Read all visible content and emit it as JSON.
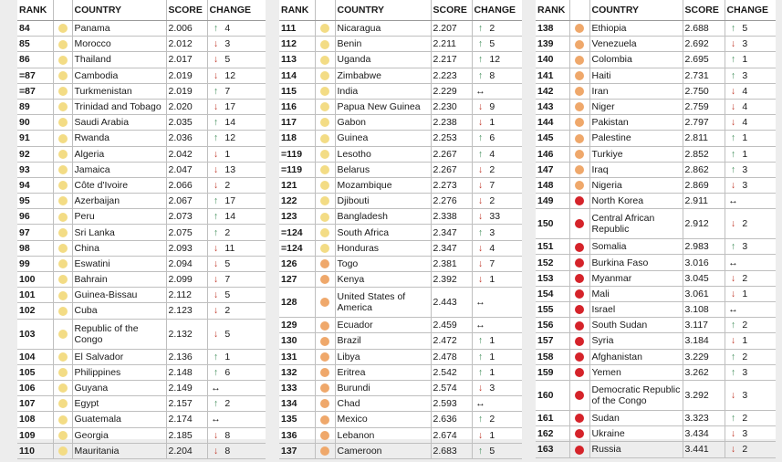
{
  "headers": {
    "rank": "RANK",
    "country": "COUNTRY",
    "score": "SCORE",
    "change": "CHANGE"
  },
  "columns": [
    {
      "rows": [
        {
          "rank": "84",
          "country": "Panama",
          "score": "2.006",
          "dir": "up",
          "change": "4",
          "level": "yellow"
        },
        {
          "rank": "85",
          "country": "Morocco",
          "score": "2.012",
          "dir": "down",
          "change": "3",
          "level": "yellow"
        },
        {
          "rank": "86",
          "country": "Thailand",
          "score": "2.017",
          "dir": "down",
          "change": "5",
          "level": "yellow"
        },
        {
          "rank": "=87",
          "country": "Cambodia",
          "score": "2.019",
          "dir": "down",
          "change": "12",
          "level": "yellow"
        },
        {
          "rank": "=87",
          "country": "Turkmenistan",
          "score": "2.019",
          "dir": "up",
          "change": "7",
          "level": "yellow"
        },
        {
          "rank": "89",
          "country": "Trinidad and Tobago",
          "score": "2.020",
          "dir": "down",
          "change": "17",
          "level": "yellow"
        },
        {
          "rank": "90",
          "country": "Saudi Arabia",
          "score": "2.035",
          "dir": "up",
          "change": "14",
          "level": "yellow"
        },
        {
          "rank": "91",
          "country": "Rwanda",
          "score": "2.036",
          "dir": "up",
          "change": "12",
          "level": "yellow"
        },
        {
          "rank": "92",
          "country": "Algeria",
          "score": "2.042",
          "dir": "down",
          "change": "1",
          "level": "yellow"
        },
        {
          "rank": "93",
          "country": "Jamaica",
          "score": "2.047",
          "dir": "down",
          "change": "13",
          "level": "yellow"
        },
        {
          "rank": "94",
          "country": "Côte d'Ivoire",
          "score": "2.066",
          "dir": "down",
          "change": "2",
          "level": "yellow"
        },
        {
          "rank": "95",
          "country": "Azerbaijan",
          "score": "2.067",
          "dir": "up",
          "change": "17",
          "level": "yellow"
        },
        {
          "rank": "96",
          "country": "Peru",
          "score": "2.073",
          "dir": "up",
          "change": "14",
          "level": "yellow"
        },
        {
          "rank": "97",
          "country": "Sri Lanka",
          "score": "2.075",
          "dir": "up",
          "change": "2",
          "level": "yellow"
        },
        {
          "rank": "98",
          "country": "China",
          "score": "2.093",
          "dir": "down",
          "change": "11",
          "level": "yellow"
        },
        {
          "rank": "99",
          "country": "Eswatini",
          "score": "2.094",
          "dir": "down",
          "change": "5",
          "level": "yellow"
        },
        {
          "rank": "100",
          "country": "Bahrain",
          "score": "2.099",
          "dir": "down",
          "change": "7",
          "level": "yellow"
        },
        {
          "rank": "101",
          "country": "Guinea-Bissau",
          "score": "2.112",
          "dir": "down",
          "change": "5",
          "level": "yellow"
        },
        {
          "rank": "102",
          "country": "Cuba",
          "score": "2.123",
          "dir": "down",
          "change": "2",
          "level": "yellow"
        },
        {
          "rank": "103",
          "country": "Republic of the Congo",
          "score": "2.132",
          "dir": "down",
          "change": "5",
          "level": "yellow",
          "tall": true
        },
        {
          "rank": "104",
          "country": "El Salvador",
          "score": "2.136",
          "dir": "up",
          "change": "1",
          "level": "yellow"
        },
        {
          "rank": "105",
          "country": "Philippines",
          "score": "2.148",
          "dir": "up",
          "change": "6",
          "level": "yellow"
        },
        {
          "rank": "106",
          "country": "Guyana",
          "score": "2.149",
          "dir": "same",
          "change": "",
          "level": "yellow"
        },
        {
          "rank": "107",
          "country": "Egypt",
          "score": "2.157",
          "dir": "up",
          "change": "2",
          "level": "yellow"
        },
        {
          "rank": "108",
          "country": "Guatemala",
          "score": "2.174",
          "dir": "same",
          "change": "",
          "level": "yellow"
        },
        {
          "rank": "109",
          "country": "Georgia",
          "score": "2.185",
          "dir": "down",
          "change": "8",
          "level": "yellow"
        },
        {
          "rank": "110",
          "country": "Mauritania",
          "score": "2.204",
          "dir": "down",
          "change": "8",
          "level": "yellow"
        }
      ]
    },
    {
      "rows": [
        {
          "rank": "111",
          "country": "Nicaragua",
          "score": "2.207",
          "dir": "up",
          "change": "2",
          "level": "yellow"
        },
        {
          "rank": "112",
          "country": "Benin",
          "score": "2.211",
          "dir": "up",
          "change": "5",
          "level": "yellow"
        },
        {
          "rank": "113",
          "country": "Uganda",
          "score": "2.217",
          "dir": "up",
          "change": "12",
          "level": "yellow"
        },
        {
          "rank": "114",
          "country": "Zimbabwe",
          "score": "2.223",
          "dir": "up",
          "change": "8",
          "level": "yellow"
        },
        {
          "rank": "115",
          "country": "India",
          "score": "2.229",
          "dir": "same",
          "change": "",
          "level": "yellow"
        },
        {
          "rank": "116",
          "country": "Papua New Guinea",
          "score": "2.230",
          "dir": "down",
          "change": "9",
          "level": "yellow"
        },
        {
          "rank": "117",
          "country": "Gabon",
          "score": "2.238",
          "dir": "down",
          "change": "1",
          "level": "yellow"
        },
        {
          "rank": "118",
          "country": "Guinea",
          "score": "2.253",
          "dir": "up",
          "change": "6",
          "level": "yellow"
        },
        {
          "rank": "=119",
          "country": "Lesotho",
          "score": "2.267",
          "dir": "up",
          "change": "4",
          "level": "yellow"
        },
        {
          "rank": "=119",
          "country": "Belarus",
          "score": "2.267",
          "dir": "down",
          "change": "2",
          "level": "yellow"
        },
        {
          "rank": "121",
          "country": "Mozambique",
          "score": "2.273",
          "dir": "down",
          "change": "7",
          "level": "yellow"
        },
        {
          "rank": "122",
          "country": "Djibouti",
          "score": "2.276",
          "dir": "down",
          "change": "2",
          "level": "yellow"
        },
        {
          "rank": "123",
          "country": "Bangladesh",
          "score": "2.338",
          "dir": "down",
          "change": "33",
          "level": "yellow"
        },
        {
          "rank": "=124",
          "country": "South Africa",
          "score": "2.347",
          "dir": "up",
          "change": "3",
          "level": "yellow"
        },
        {
          "rank": "=124",
          "country": "Honduras",
          "score": "2.347",
          "dir": "down",
          "change": "4",
          "level": "yellow"
        },
        {
          "rank": "126",
          "country": "Togo",
          "score": "2.381",
          "dir": "down",
          "change": "7",
          "level": "orange"
        },
        {
          "rank": "127",
          "country": "Kenya",
          "score": "2.392",
          "dir": "down",
          "change": "1",
          "level": "orange"
        },
        {
          "rank": "128",
          "country": "United States of America",
          "score": "2.443",
          "dir": "same",
          "change": "",
          "level": "orange",
          "tall": true
        },
        {
          "rank": "129",
          "country": "Ecuador",
          "score": "2.459",
          "dir": "same",
          "change": "",
          "level": "orange"
        },
        {
          "rank": "130",
          "country": "Brazil",
          "score": "2.472",
          "dir": "up",
          "change": "1",
          "level": "orange"
        },
        {
          "rank": "131",
          "country": "Libya",
          "score": "2.478",
          "dir": "up",
          "change": "1",
          "level": "orange"
        },
        {
          "rank": "132",
          "country": "Eritrea",
          "score": "2.542",
          "dir": "up",
          "change": "1",
          "level": "orange"
        },
        {
          "rank": "133",
          "country": "Burundi",
          "score": "2.574",
          "dir": "down",
          "change": "3",
          "level": "orange"
        },
        {
          "rank": "134",
          "country": "Chad",
          "score": "2.593",
          "dir": "same",
          "change": "",
          "level": "orange"
        },
        {
          "rank": "135",
          "country": "Mexico",
          "score": "2.636",
          "dir": "up",
          "change": "2",
          "level": "orange"
        },
        {
          "rank": "136",
          "country": "Lebanon",
          "score": "2.674",
          "dir": "down",
          "change": "1",
          "level": "orange"
        },
        {
          "rank": "137",
          "country": "Cameroon",
          "score": "2.683",
          "dir": "up",
          "change": "5",
          "level": "orange"
        }
      ]
    },
    {
      "rows": [
        {
          "rank": "138",
          "country": "Ethiopia",
          "score": "2.688",
          "dir": "up",
          "change": "5",
          "level": "orange"
        },
        {
          "rank": "139",
          "country": "Venezuela",
          "score": "2.692",
          "dir": "down",
          "change": "3",
          "level": "orange"
        },
        {
          "rank": "140",
          "country": "Colombia",
          "score": "2.695",
          "dir": "up",
          "change": "1",
          "level": "orange"
        },
        {
          "rank": "141",
          "country": "Haiti",
          "score": "2.731",
          "dir": "up",
          "change": "3",
          "level": "orange"
        },
        {
          "rank": "142",
          "country": "Iran",
          "score": "2.750",
          "dir": "down",
          "change": "4",
          "level": "orange"
        },
        {
          "rank": "143",
          "country": "Niger",
          "score": "2.759",
          "dir": "down",
          "change": "4",
          "level": "orange"
        },
        {
          "rank": "144",
          "country": "Pakistan",
          "score": "2.797",
          "dir": "down",
          "change": "4",
          "level": "orange"
        },
        {
          "rank": "145",
          "country": "Palestine",
          "score": "2.811",
          "dir": "up",
          "change": "1",
          "level": "orange"
        },
        {
          "rank": "146",
          "country": "Turkiye",
          "score": "2.852",
          "dir": "up",
          "change": "1",
          "level": "orange"
        },
        {
          "rank": "147",
          "country": "Iraq",
          "score": "2.862",
          "dir": "up",
          "change": "3",
          "level": "orange"
        },
        {
          "rank": "148",
          "country": "Nigeria",
          "score": "2.869",
          "dir": "down",
          "change": "3",
          "level": "orange"
        },
        {
          "rank": "149",
          "country": "North Korea",
          "score": "2.911",
          "dir": "same",
          "change": "",
          "level": "red"
        },
        {
          "rank": "150",
          "country": "Central African Republic",
          "score": "2.912",
          "dir": "down",
          "change": "2",
          "level": "red",
          "tall": true
        },
        {
          "rank": "151",
          "country": "Somalia",
          "score": "2.983",
          "dir": "up",
          "change": "3",
          "level": "red"
        },
        {
          "rank": "152",
          "country": "Burkina Faso",
          "score": "3.016",
          "dir": "same",
          "change": "",
          "level": "red"
        },
        {
          "rank": "153",
          "country": "Myanmar",
          "score": "3.045",
          "dir": "down",
          "change": "2",
          "level": "red"
        },
        {
          "rank": "154",
          "country": "Mali",
          "score": "3.061",
          "dir": "down",
          "change": "1",
          "level": "red"
        },
        {
          "rank": "155",
          "country": "Israel",
          "score": "3.108",
          "dir": "same",
          "change": "",
          "level": "red"
        },
        {
          "rank": "156",
          "country": "South Sudan",
          "score": "3.117",
          "dir": "up",
          "change": "2",
          "level": "red"
        },
        {
          "rank": "157",
          "country": "Syria",
          "score": "3.184",
          "dir": "down",
          "change": "1",
          "level": "red"
        },
        {
          "rank": "158",
          "country": "Afghanistan",
          "score": "3.229",
          "dir": "up",
          "change": "2",
          "level": "red"
        },
        {
          "rank": "159",
          "country": "Yemen",
          "score": "3.262",
          "dir": "up",
          "change": "3",
          "level": "red"
        },
        {
          "rank": "160",
          "country": "Democratic Republic of the Congo",
          "score": "3.292",
          "dir": "down",
          "change": "3",
          "level": "red",
          "tall": true
        },
        {
          "rank": "161",
          "country": "Sudan",
          "score": "3.323",
          "dir": "up",
          "change": "2",
          "level": "red"
        },
        {
          "rank": "162",
          "country": "Ukraine",
          "score": "3.434",
          "dir": "down",
          "change": "3",
          "level": "red"
        },
        {
          "rank": "163",
          "country": "Russia",
          "score": "3.441",
          "dir": "down",
          "change": "2",
          "level": "red"
        }
      ]
    }
  ],
  "colors": {
    "yellow": "#f3dc85",
    "orange": "#efa86b",
    "red": "#d5232a",
    "arrow_up": "#3d8a56",
    "arrow_down": "#c0392b"
  },
  "arrow_icons": {
    "up": "arrow-up-icon",
    "down": "arrow-down-icon",
    "same": "arrow-left-right-icon"
  }
}
